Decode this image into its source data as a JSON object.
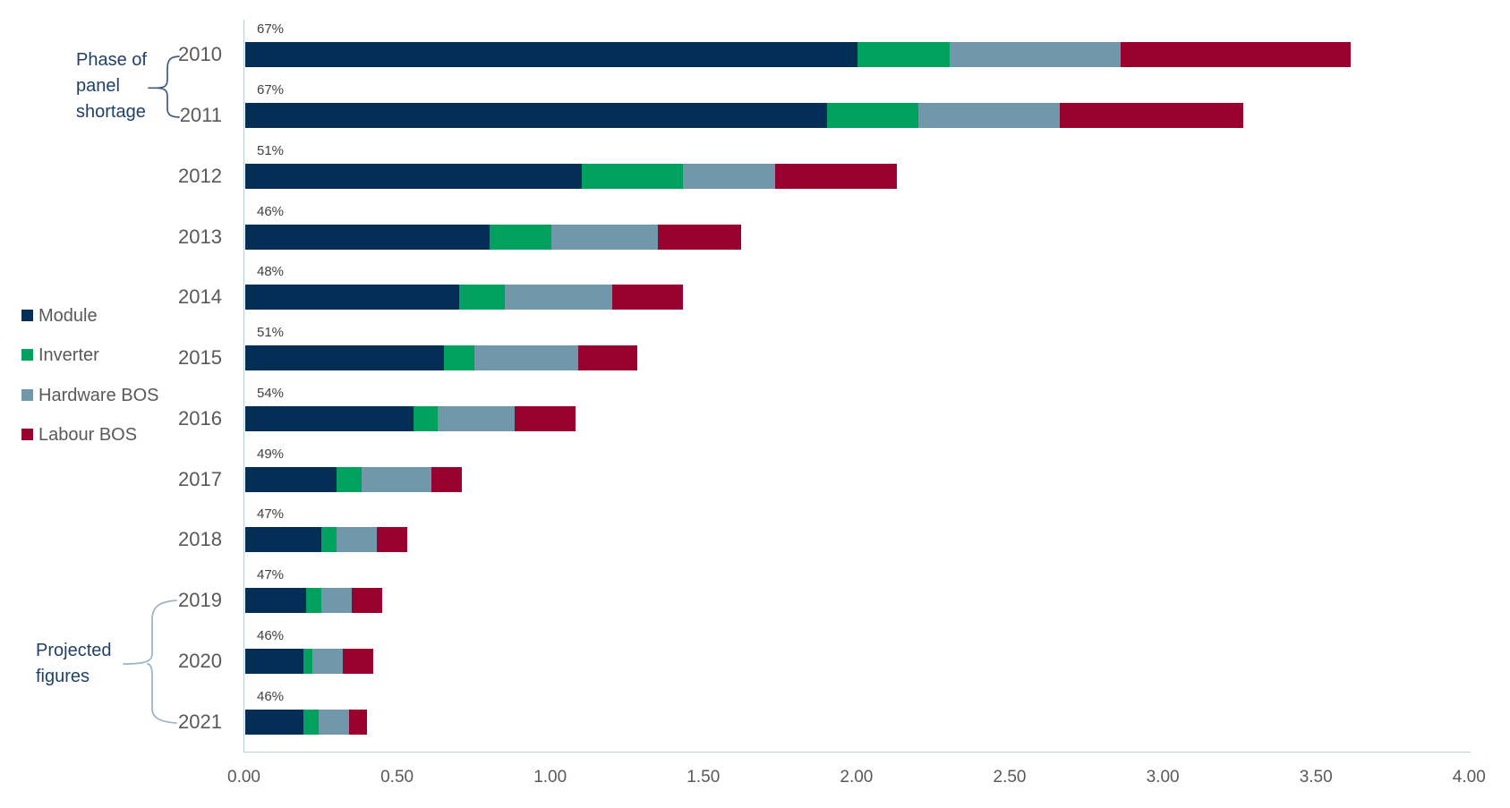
{
  "chart_data": {
    "type": "bar",
    "orientation": "horizontal",
    "stacked": true,
    "title": "",
    "xlabel": "",
    "ylabel": "",
    "xlim": [
      0,
      4
    ],
    "x_ticks": [
      "0.00",
      "0.50",
      "1.00",
      "1.50",
      "2.00",
      "2.50",
      "3.00",
      "3.50",
      "4.00"
    ],
    "grid": false,
    "legend_position": "left",
    "categories": [
      "2010",
      "2011",
      "2012",
      "2013",
      "2014",
      "2015",
      "2016",
      "2017",
      "2018",
      "2019",
      "2020",
      "2021"
    ],
    "series": [
      {
        "name": "Module",
        "color": "#042e55",
        "values": [
          2.0,
          1.9,
          1.1,
          0.8,
          0.7,
          0.65,
          0.55,
          0.3,
          0.25,
          0.2,
          0.19,
          0.19
        ]
      },
      {
        "name": "Inverter",
        "color": "#00a15e",
        "values": [
          0.3,
          0.3,
          0.33,
          0.2,
          0.15,
          0.1,
          0.08,
          0.08,
          0.05,
          0.05,
          0.03,
          0.05
        ]
      },
      {
        "name": "Hardware BOS",
        "color": "#7097aa",
        "values": [
          0.56,
          0.46,
          0.3,
          0.35,
          0.35,
          0.34,
          0.25,
          0.23,
          0.13,
          0.1,
          0.1,
          0.1
        ]
      },
      {
        "name": "Labour BOS",
        "color": "#98002e",
        "values": [
          0.75,
          0.6,
          0.4,
          0.27,
          0.23,
          0.19,
          0.2,
          0.1,
          0.1,
          0.1,
          0.1,
          0.06
        ]
      }
    ],
    "bar_totals": [
      3.61,
      3.26,
      2.13,
      1.62,
      1.43,
      1.28,
      1.08,
      0.71,
      0.53,
      0.45,
      0.42,
      0.4
    ],
    "bar_labels": [
      "67%",
      "67%",
      "51%",
      "46%",
      "48%",
      "51%",
      "54%",
      "49%",
      "47%",
      "47%",
      "46%",
      "46%"
    ],
    "annotations": [
      {
        "id": "phase-of-panel-shortage",
        "lines": [
          "Phase of",
          "panel",
          "shortage"
        ],
        "applies_to": [
          "2010",
          "2011"
        ]
      },
      {
        "id": "projected-figures",
        "lines": [
          "Projected",
          "figures"
        ],
        "applies_to": [
          "2019",
          "2020",
          "2021"
        ]
      }
    ]
  },
  "colors": {
    "module": "#042e55",
    "inverter": "#00a15e",
    "hardware_bos": "#7097aa",
    "labour_bos": "#98002e",
    "axis_line": "#b8cdd5",
    "year_text": "#595959",
    "tick_text": "#595959",
    "percent_text": "#404040",
    "annotation_text": "#1f4068",
    "brace_top": "#3f5c7e",
    "brace_bottom": "#9db3c4"
  }
}
